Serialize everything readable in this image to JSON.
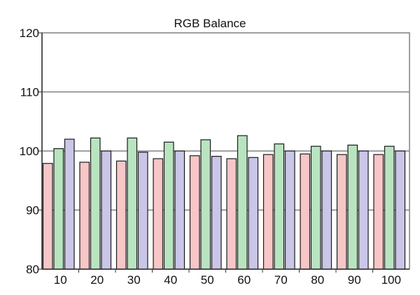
{
  "chart_data": {
    "type": "bar",
    "title": "RGB Balance",
    "xlabel": "",
    "ylabel": "",
    "categories": [
      "10",
      "20",
      "30",
      "40",
      "50",
      "60",
      "70",
      "80",
      "90",
      "100"
    ],
    "series": [
      {
        "values": [
          97.9,
          98.1,
          98.3,
          98.7,
          99.2,
          98.7,
          99.4,
          99.5,
          99.4,
          99.4
        ],
        "color": "#f7c6c7"
      },
      {
        "values": [
          100.4,
          102.2,
          102.2,
          101.5,
          101.9,
          102.6,
          101.2,
          100.8,
          101.0,
          100.8
        ],
        "color": "#b9e4c0"
      },
      {
        "values": [
          102.0,
          100.0,
          99.8,
          100.0,
          99.1,
          98.9,
          100.0,
          100.0,
          100.0,
          100.0
        ],
        "color": "#c9c6e8"
      }
    ],
    "ylim": [
      80,
      120
    ],
    "yticks": [
      80,
      90,
      100,
      110,
      120
    ],
    "grid": true,
    "legend": "none"
  }
}
